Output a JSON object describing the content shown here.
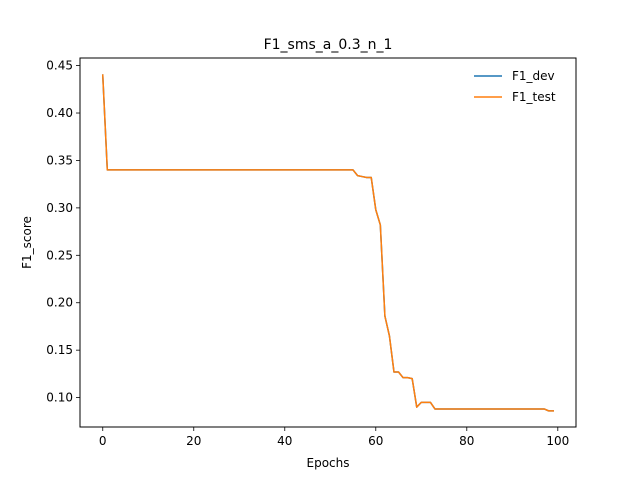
{
  "chart_data": {
    "type": "line",
    "title": "F1_sms_a_0.3_n_1",
    "xlabel": "Epochs",
    "ylabel": "F1_score",
    "xlim": [
      -5,
      104
    ],
    "ylim": [
      0.069,
      0.458
    ],
    "xticks": [
      0,
      20,
      40,
      60,
      80,
      100
    ],
    "yticks": [
      0.1,
      0.15,
      0.2,
      0.25,
      0.3,
      0.35,
      0.4,
      0.45
    ],
    "grid": false,
    "legend": "top-right",
    "x": [
      0,
      1,
      2,
      3,
      4,
      5,
      6,
      7,
      8,
      9,
      10,
      11,
      12,
      13,
      14,
      15,
      16,
      17,
      18,
      19,
      20,
      21,
      22,
      23,
      24,
      25,
      26,
      27,
      28,
      29,
      30,
      31,
      32,
      33,
      34,
      35,
      36,
      37,
      38,
      39,
      40,
      41,
      42,
      43,
      44,
      45,
      46,
      47,
      48,
      49,
      50,
      51,
      52,
      53,
      54,
      55,
      56,
      57,
      58,
      59,
      60,
      61,
      62,
      63,
      64,
      65,
      66,
      67,
      68,
      69,
      70,
      71,
      72,
      73,
      74,
      75,
      76,
      77,
      78,
      79,
      80,
      81,
      82,
      83,
      84,
      85,
      86,
      87,
      88,
      89,
      90,
      91,
      92,
      93,
      94,
      95,
      96,
      97,
      98,
      99
    ],
    "series": [
      {
        "name": "F1_dev",
        "color": "#1f77b4",
        "values": [
          0.44,
          0.34,
          0.34,
          0.34,
          0.34,
          0.34,
          0.34,
          0.34,
          0.34,
          0.34,
          0.34,
          0.34,
          0.34,
          0.34,
          0.34,
          0.34,
          0.34,
          0.34,
          0.34,
          0.34,
          0.34,
          0.34,
          0.34,
          0.34,
          0.34,
          0.34,
          0.34,
          0.34,
          0.34,
          0.34,
          0.34,
          0.34,
          0.34,
          0.34,
          0.34,
          0.34,
          0.34,
          0.34,
          0.34,
          0.34,
          0.34,
          0.34,
          0.34,
          0.34,
          0.34,
          0.34,
          0.34,
          0.34,
          0.34,
          0.34,
          0.34,
          0.34,
          0.34,
          0.34,
          0.34,
          0.34,
          0.334,
          0.333,
          0.332,
          0.332,
          0.298,
          0.282,
          0.186,
          0.165,
          0.127,
          0.127,
          0.121,
          0.121,
          0.12,
          0.09,
          0.095,
          0.095,
          0.095,
          0.088,
          0.088,
          0.088,
          0.088,
          0.088,
          0.088,
          0.088,
          0.088,
          0.088,
          0.088,
          0.088,
          0.088,
          0.088,
          0.088,
          0.088,
          0.088,
          0.088,
          0.088,
          0.088,
          0.088,
          0.088,
          0.088,
          0.088,
          0.088,
          0.088,
          0.086,
          0.086
        ]
      },
      {
        "name": "F1_test",
        "color": "#ff7f0e",
        "values": [
          0.44,
          0.34,
          0.34,
          0.34,
          0.34,
          0.34,
          0.34,
          0.34,
          0.34,
          0.34,
          0.34,
          0.34,
          0.34,
          0.34,
          0.34,
          0.34,
          0.34,
          0.34,
          0.34,
          0.34,
          0.34,
          0.34,
          0.34,
          0.34,
          0.34,
          0.34,
          0.34,
          0.34,
          0.34,
          0.34,
          0.34,
          0.34,
          0.34,
          0.34,
          0.34,
          0.34,
          0.34,
          0.34,
          0.34,
          0.34,
          0.34,
          0.34,
          0.34,
          0.34,
          0.34,
          0.34,
          0.34,
          0.34,
          0.34,
          0.34,
          0.34,
          0.34,
          0.34,
          0.34,
          0.34,
          0.34,
          0.334,
          0.333,
          0.332,
          0.332,
          0.298,
          0.282,
          0.186,
          0.165,
          0.127,
          0.127,
          0.121,
          0.121,
          0.12,
          0.09,
          0.095,
          0.095,
          0.095,
          0.088,
          0.088,
          0.088,
          0.088,
          0.088,
          0.088,
          0.088,
          0.088,
          0.088,
          0.088,
          0.088,
          0.088,
          0.088,
          0.088,
          0.088,
          0.088,
          0.088,
          0.088,
          0.088,
          0.088,
          0.088,
          0.088,
          0.088,
          0.088,
          0.088,
          0.086,
          0.086
        ]
      }
    ]
  }
}
